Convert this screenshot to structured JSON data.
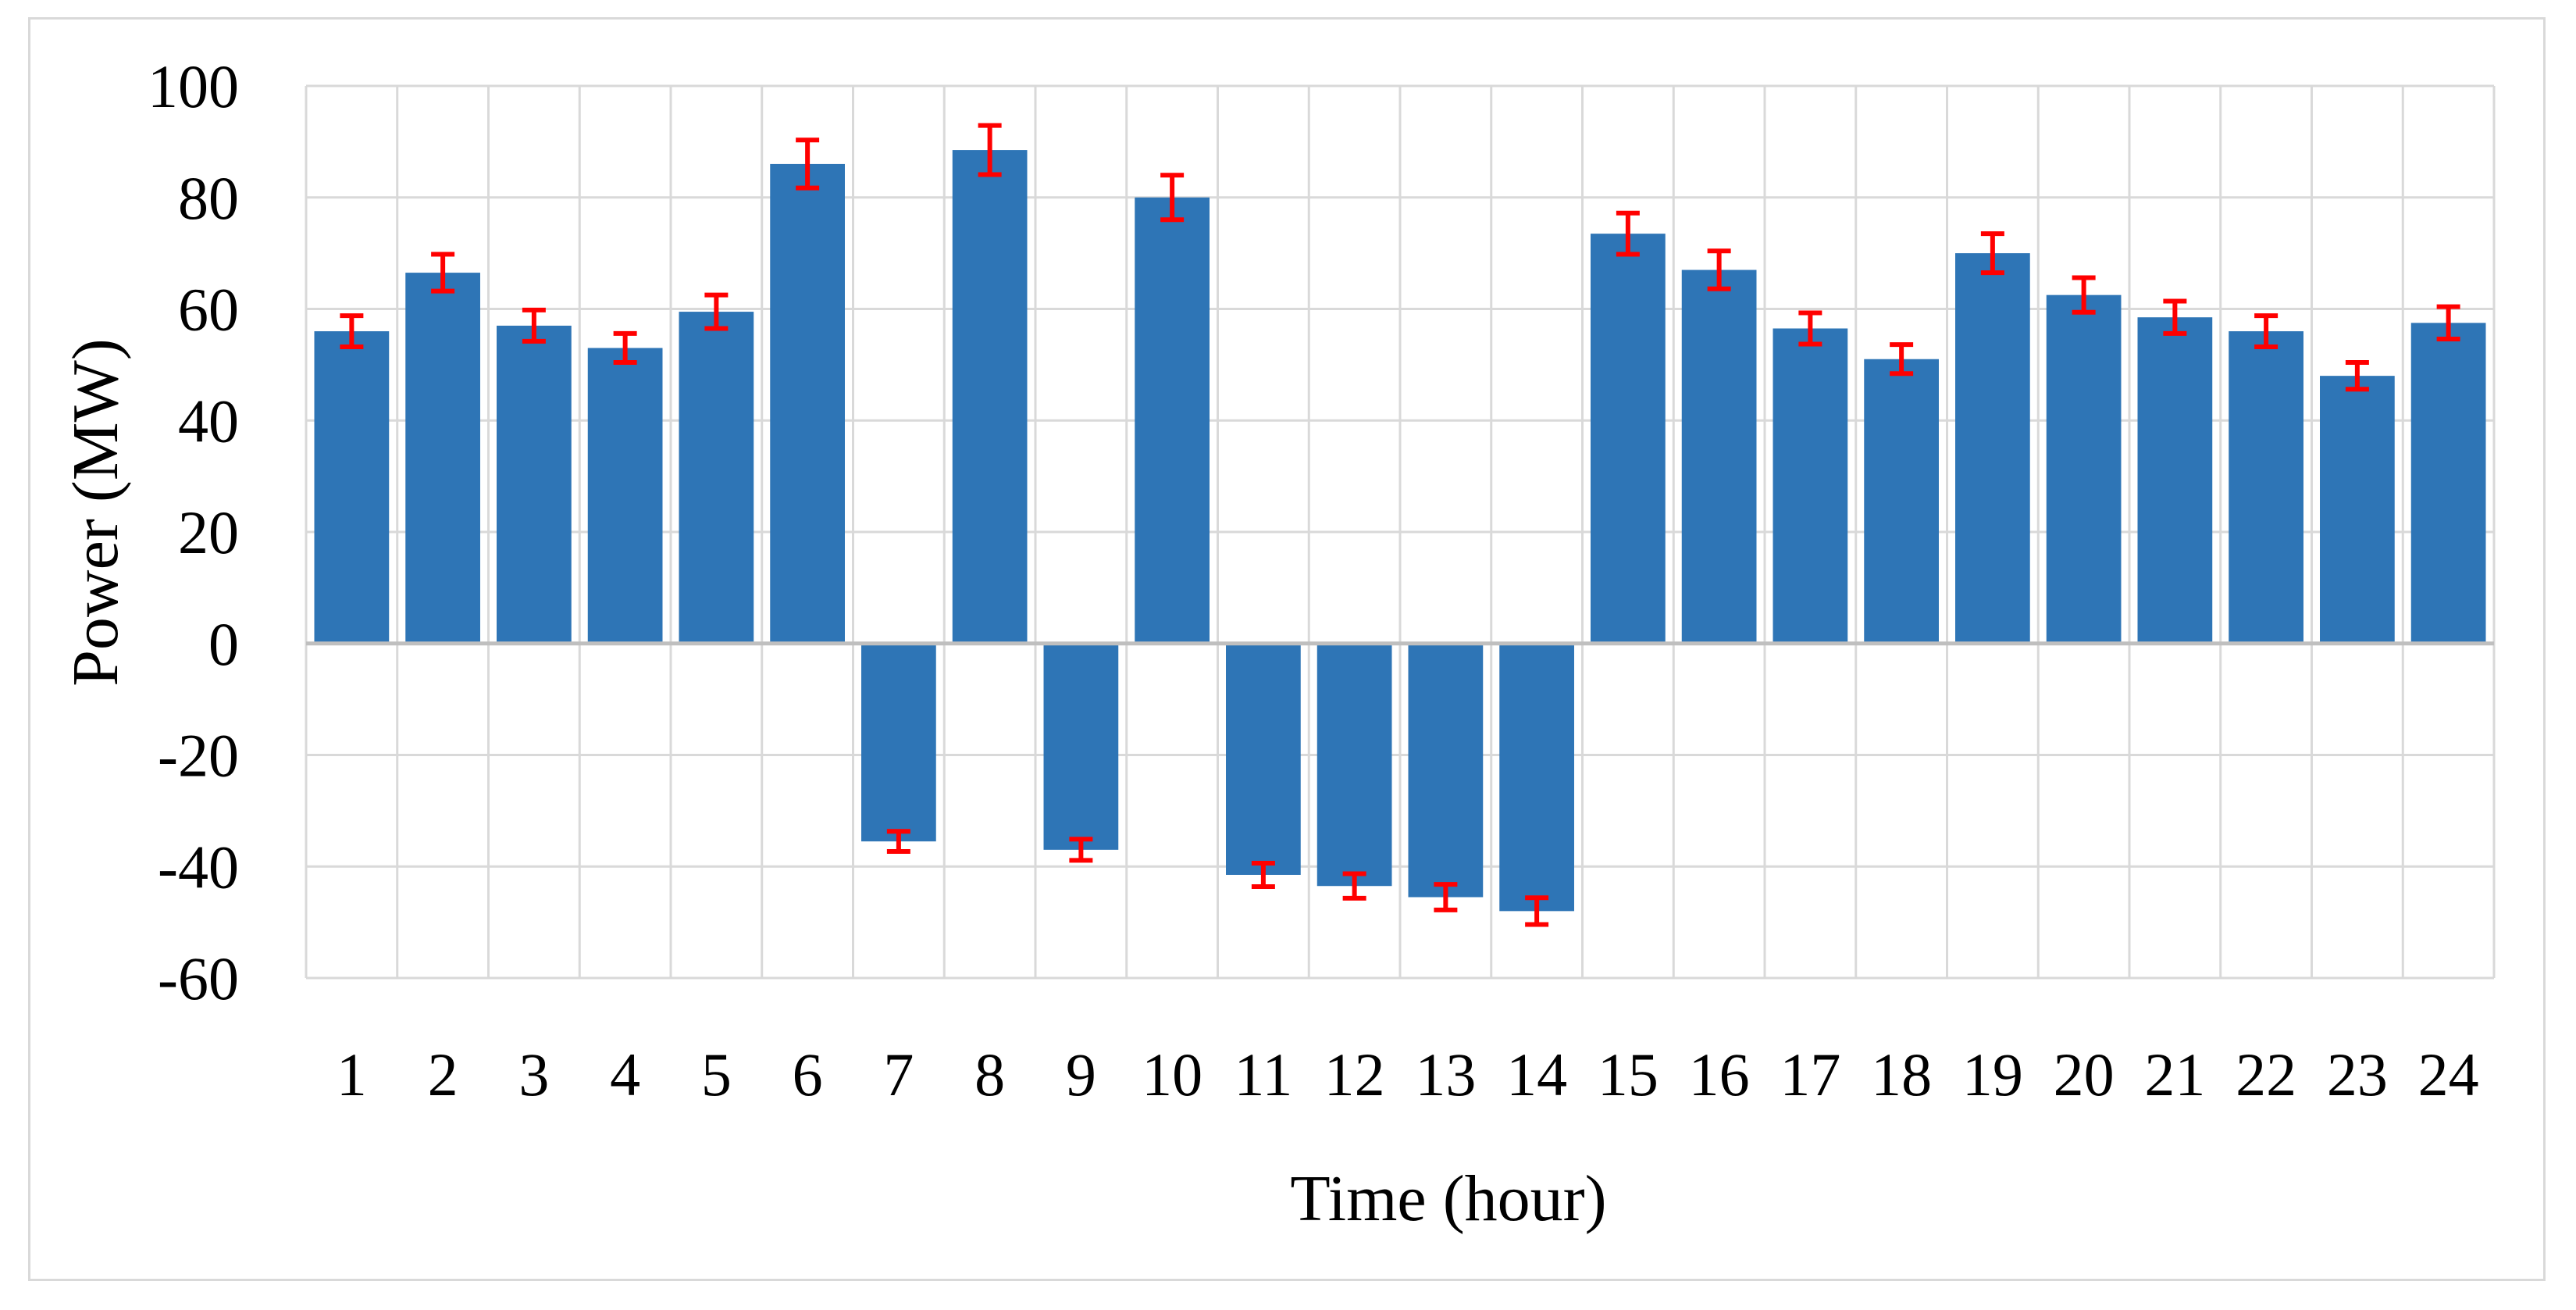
{
  "chart_data": {
    "type": "bar",
    "title": "",
    "xlabel": "Time (hour)",
    "ylabel": "Power (MW)",
    "ylim": [
      -60,
      100
    ],
    "yticks": [
      100,
      80,
      60,
      40,
      20,
      0,
      -20,
      -40,
      -60
    ],
    "grid": true,
    "legend": "none",
    "categories": [
      "1",
      "2",
      "3",
      "4",
      "5",
      "6",
      "7",
      "8",
      "9",
      "10",
      "11",
      "12",
      "13",
      "14",
      "15",
      "16",
      "17",
      "18",
      "19",
      "20",
      "21",
      "22",
      "23",
      "24"
    ],
    "values": [
      56,
      66.5,
      57,
      53,
      59.5,
      86,
      -35.5,
      88.5,
      -37,
      80,
      -41.5,
      -43.5,
      -45.5,
      -48,
      73.5,
      67,
      56.5,
      51,
      70,
      62.5,
      58.5,
      56,
      48,
      57.5
    ],
    "error": [
      2.8,
      3.3,
      2.8,
      2.6,
      3.0,
      4.3,
      1.8,
      4.4,
      1.9,
      4.0,
      2.1,
      2.2,
      2.3,
      2.4,
      3.7,
      3.4,
      2.8,
      2.6,
      3.5,
      3.1,
      2.9,
      2.8,
      2.4,
      2.9
    ],
    "colors": {
      "bar": "#2e75b6",
      "error_bar": "#ff0000",
      "grid": "#d9d9d9"
    }
  }
}
